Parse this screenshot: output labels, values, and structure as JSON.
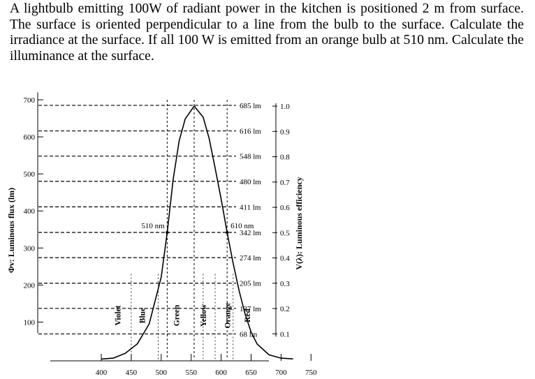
{
  "problem_text": "A lightbulb emitting 100W of radiant power in the kitchen is positioned 2 m from surface. The surface is oriented perpendicular to a line from the bulb to the surface. Calculate the irradiance at the surface. If all 100 W is emitted from an orange bulb at 510 nm. Calculate the illuminance at the surface.",
  "colors": {
    "ink": "#000000",
    "background": "#ffffff"
  },
  "chart_data": {
    "type": "line",
    "title": "",
    "xlabel": "",
    "ylabel": "Φv: Luminous flux (lm)",
    "y2label": "V(λ): Luminous efficiency",
    "xlim": [
      375,
      775
    ],
    "ylim": [
      50,
      700
    ],
    "x_ticks": [
      "400",
      "450",
      "500",
      "550",
      "600",
      "650",
      "700",
      "750"
    ],
    "y_ticks": [
      "100",
      "200",
      "300",
      "400",
      "500",
      "600",
      "700"
    ],
    "gridlines_lm": [
      "685 lm",
      "616 lm",
      "548 lm",
      "480 lm",
      "411 lm",
      "342 lm",
      "274 lm",
      "205 lm",
      "137 lm",
      "68 lm"
    ],
    "right_ticks": [
      "1.0",
      "0.9",
      "0.8",
      "0.7",
      "0.6",
      "0.5",
      "0.4",
      "0.3",
      "0.2",
      "0.1"
    ],
    "grid": "dashed",
    "annotations": [
      "510 nm",
      "610 nm"
    ],
    "bands": [
      "Violet",
      "Blue",
      "Green",
      "Yellow",
      "Orange",
      "Red"
    ],
    "series": [
      {
        "x": [
          400,
          420,
          440,
          460,
          480,
          500,
          510,
          520,
          530,
          540,
          555,
          570,
          580,
          590,
          600,
          610,
          620,
          630,
          640,
          650,
          660,
          680,
          700,
          720
        ],
        "values": [
          0.3,
          2.7,
          15.8,
          41,
          95,
          221,
          342,
          486,
          589,
          648,
          683,
          653,
          596,
          516,
          432,
          342,
          259,
          185,
          122,
          73,
          41,
          11.6,
          2.8,
          0.7
        ]
      }
    ]
  }
}
